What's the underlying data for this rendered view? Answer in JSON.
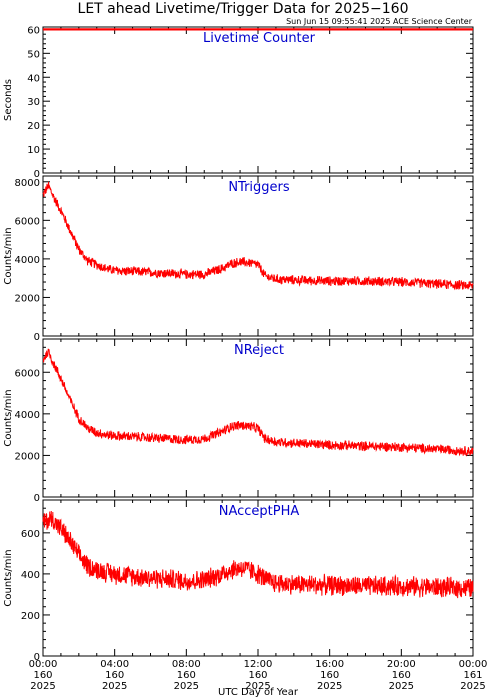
{
  "figure": {
    "title": "LET ahead Livetime/Trigger Data for 2025−160",
    "timestamp": "Sun Jun 15 09:55:41 2025 ACE Science Center",
    "xlabel": "UTC Day of Year"
  },
  "colors": {
    "line": "#ff0000",
    "title": "#0000cc",
    "axis": "#000000"
  },
  "x_ticks": [
    {
      "time": "00:00",
      "doy": "160",
      "year": "2025"
    },
    {
      "time": "04:00",
      "doy": "160",
      "year": "2025"
    },
    {
      "time": "08:00",
      "doy": "160",
      "year": "2025"
    },
    {
      "time": "12:00",
      "doy": "160",
      "year": "2025"
    },
    {
      "time": "16:00",
      "doy": "160",
      "year": "2025"
    },
    {
      "time": "20:00",
      "doy": "160",
      "year": "2025"
    },
    {
      "time": "00:00",
      "doy": "161",
      "year": "2025"
    }
  ],
  "chart_data": [
    {
      "type": "line",
      "title": "Livetime Counter",
      "ylabel": "Seconds",
      "xlim": [
        0,
        24
      ],
      "ylim": [
        0,
        61
      ],
      "yticks": [
        0,
        10,
        20,
        30,
        40,
        50,
        60
      ],
      "series": [
        {
          "x": [
            0,
            24
          ],
          "y": [
            60,
            60
          ]
        }
      ]
    },
    {
      "type": "line",
      "title": "NTriggers",
      "ylabel": "Counts/min",
      "xlim": [
        0,
        24
      ],
      "ylim": [
        0,
        8300
      ],
      "yticks": [
        0,
        2000,
        4000,
        6000,
        8000
      ],
      "series": [
        {
          "x": [
            0,
            0.3,
            0.6,
            1.0,
            1.5,
            2.0,
            2.5,
            3.0,
            3.5,
            4.0,
            5.0,
            6.0,
            7.0,
            8.0,
            9.0,
            10.0,
            10.5,
            11.0,
            11.5,
            12.0,
            12.4,
            13.0,
            14.0,
            16.0,
            18.0,
            20.0,
            22.0,
            24.0
          ],
          "y": [
            7300,
            7800,
            7200,
            6500,
            5500,
            4500,
            3900,
            3700,
            3500,
            3400,
            3350,
            3300,
            3250,
            3200,
            3200,
            3500,
            3750,
            3850,
            3800,
            3700,
            3100,
            2950,
            2900,
            2850,
            2850,
            2800,
            2700,
            2600
          ],
          "noise": 280
        }
      ]
    },
    {
      "type": "line",
      "title": "NReject",
      "ylabel": "Counts/min",
      "xlim": [
        0,
        24
      ],
      "ylim": [
        0,
        7600
      ],
      "yticks": [
        0,
        2000,
        4000,
        6000
      ],
      "series": [
        {
          "x": [
            0,
            0.3,
            0.6,
            1.0,
            1.5,
            2.0,
            2.5,
            3.0,
            3.5,
            4.0,
            5.0,
            6.0,
            7.0,
            8.0,
            9.0,
            10.0,
            10.5,
            11.0,
            11.5,
            12.0,
            12.4,
            13.0,
            14.0,
            16.0,
            18.0,
            20.0,
            22.0,
            24.0
          ],
          "y": [
            6600,
            7000,
            6400,
            5700,
            4700,
            3800,
            3300,
            3100,
            3000,
            2950,
            2900,
            2850,
            2800,
            2750,
            2800,
            3150,
            3400,
            3450,
            3400,
            3300,
            2800,
            2650,
            2600,
            2500,
            2450,
            2400,
            2300,
            2200
          ],
          "noise": 260
        }
      ]
    },
    {
      "type": "line",
      "title": "NAcceptPHA",
      "ylabel": "Counts/min",
      "xlim": [
        0,
        24
      ],
      "ylim": [
        0,
        760
      ],
      "yticks": [
        0,
        200,
        400,
        600
      ],
      "series": [
        {
          "x": [
            0,
            0.5,
            1.0,
            1.5,
            2.0,
            2.5,
            3.0,
            4.0,
            5.0,
            6.0,
            7.0,
            8.0,
            9.0,
            10.0,
            10.5,
            11.0,
            11.5,
            12.0,
            12.5,
            13.0,
            14.0,
            16.0,
            18.0,
            20.0,
            22.0,
            24.0
          ],
          "y": [
            650,
            670,
            620,
            560,
            490,
            440,
            420,
            400,
            390,
            380,
            375,
            365,
            370,
            400,
            420,
            430,
            420,
            400,
            370,
            355,
            350,
            345,
            340,
            340,
            335,
            330
          ],
          "noise": 55
        }
      ]
    }
  ]
}
